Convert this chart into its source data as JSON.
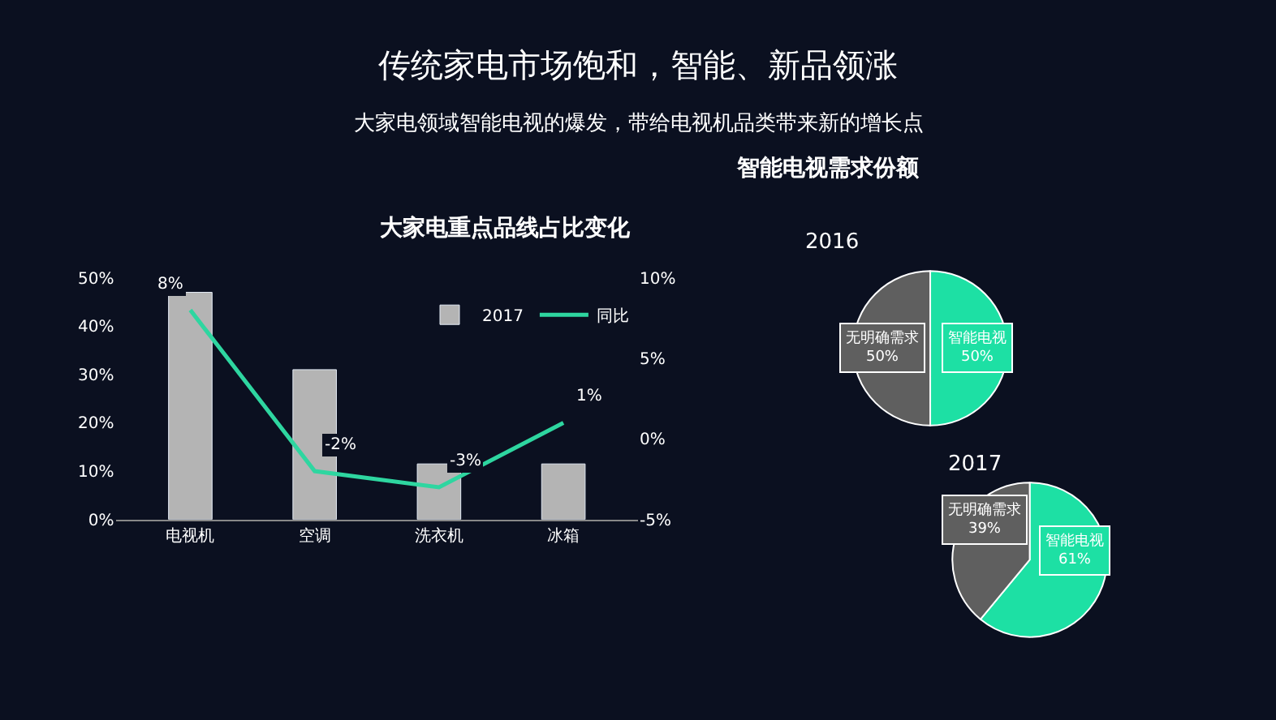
{
  "chart_data": [
    {
      "type": "other",
      "title": "传统家电市场饱和，智能、新品领涨",
      "subtitle": "大家电领域智能电视的爆发，带给电视机品类带来新的增长点"
    },
    {
      "type": "bar",
      "title": "大家电重点品线占比变化",
      "categories": [
        "电视机",
        "空调",
        "洗衣机",
        "冰箱"
      ],
      "series": [
        {
          "name": "2017",
          "type": "bar",
          "color": "#b4b4b4",
          "values": [
            47,
            31,
            11.5,
            11.5
          ]
        },
        {
          "name": "同比",
          "type": "line",
          "axis": "y2",
          "color": "#2ed6a0",
          "values": [
            8,
            -2,
            -3,
            1
          ],
          "value_labels": [
            "8%",
            "-2%",
            "-3%",
            "1%"
          ]
        }
      ],
      "ylim": [
        0,
        50
      ],
      "yticks": [
        {
          "value": 0,
          "label": "0%"
        },
        {
          "value": 10,
          "label": "10%"
        },
        {
          "value": 20,
          "label": "20%"
        },
        {
          "value": 30,
          "label": "30%"
        },
        {
          "value": 40,
          "label": "40%"
        },
        {
          "value": 50,
          "label": "50%"
        }
      ],
      "y2lim": [
        -5,
        10
      ],
      "y2ticks": [
        {
          "value": -5,
          "label": "-5%"
        },
        {
          "value": 0,
          "label": "0%"
        },
        {
          "value": 5,
          "label": "5%"
        },
        {
          "value": 10,
          "label": "10%"
        }
      ],
      "grid": false,
      "legend": "top right",
      "marker": "none"
    },
    {
      "type": "pie",
      "title": "智能电视需求份额",
      "subtitle": "2016",
      "categories": [
        "智能电视",
        "无明确需求"
      ],
      "values": [
        50,
        50
      ],
      "colors": [
        "#1de0a4",
        "#5f5f5f"
      ],
      "value_labels": [
        "50%",
        "50%"
      ]
    },
    {
      "type": "pie",
      "title": "2017",
      "categories": [
        "智能电视",
        "无明确需求"
      ],
      "values": [
        61,
        39
      ],
      "colors": [
        "#1de0a4",
        "#5f5f5f"
      ],
      "value_labels": [
        "61%",
        "39%"
      ]
    }
  ]
}
